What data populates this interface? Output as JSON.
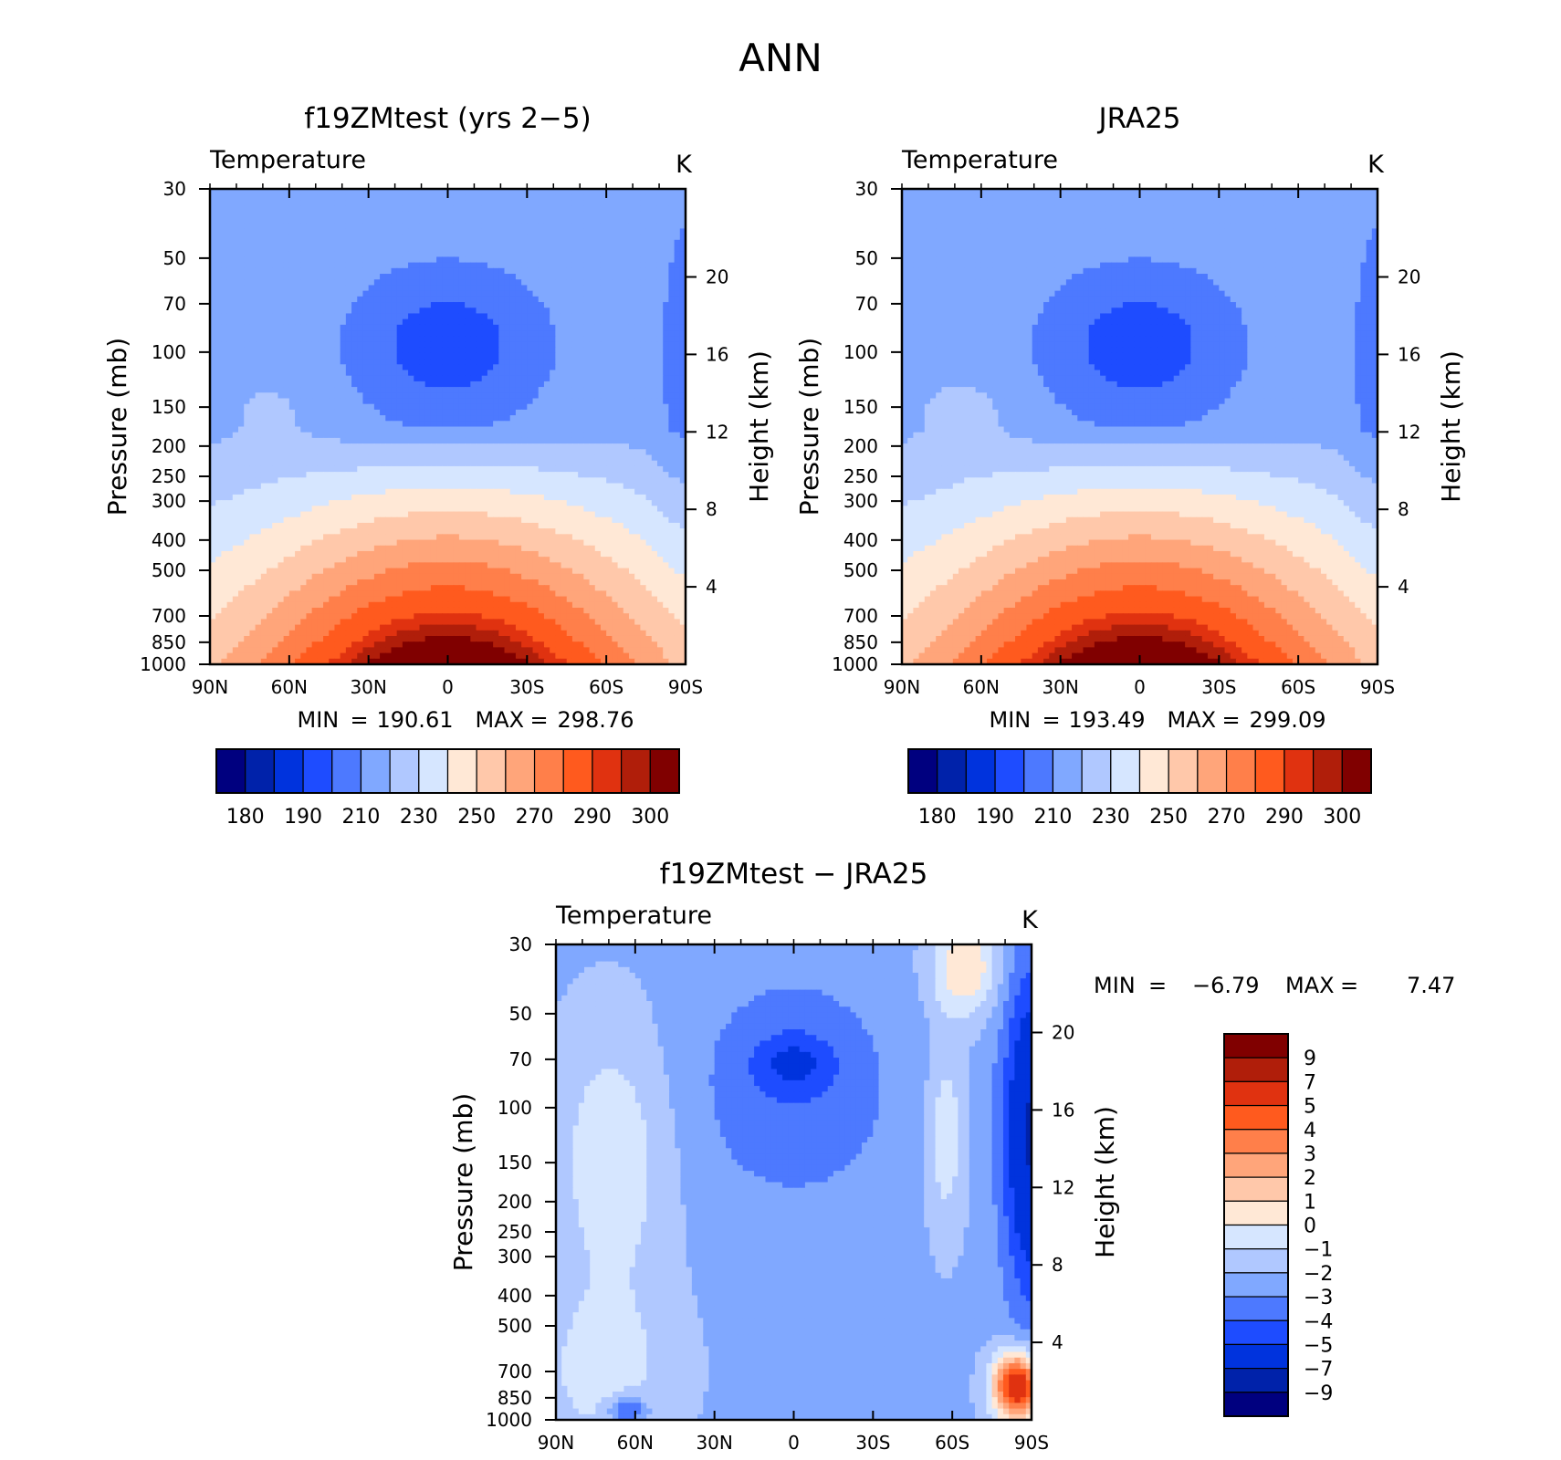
{
  "figure_title": "ANN",
  "colors": {
    "abs_palette": [
      "#00007f",
      "#0022aa",
      "#0033dd",
      "#1e4cff",
      "#4d79ff",
      "#80a8ff",
      "#b0c8ff",
      "#d6e6ff",
      "#ffe8d6",
      "#ffc8aa",
      "#ffa57a",
      "#ff7f4a",
      "#ff5a1e",
      "#e03210",
      "#b01e0a",
      "#800000"
    ],
    "diff_palette": [
      "#00007f",
      "#0022aa",
      "#0033dd",
      "#1e4cff",
      "#4d79ff",
      "#80a8ff",
      "#b0c8ff",
      "#d6e6ff",
      "#ffe8d6",
      "#ffc8aa",
      "#ffa57a",
      "#ff7f4a",
      "#ff5a1e",
      "#e03210",
      "#b01e0a",
      "#800000"
    ]
  },
  "chart_data": [
    {
      "type": "heatmap",
      "title": "f19ZMtest (yrs 2−5)",
      "variable": "Temperature",
      "units": "K",
      "ylabel": "Pressure (mb)",
      "ylabel_right": "Height (km)",
      "x_ticks": [
        "90N",
        "60N",
        "30N",
        "0",
        "30S",
        "60S",
        "90S"
      ],
      "y_ticks": [
        "30",
        "50",
        "70",
        "100",
        "150",
        "200",
        "250",
        "300",
        "400",
        "500",
        "700",
        "850",
        "1000"
      ],
      "y_ticks_right": [
        "20",
        "16",
        "12",
        "8",
        "4"
      ],
      "min_label": "MIN",
      "min_value": "190.61",
      "max_label": "MAX",
      "max_value": "298.76",
      "colorbar_labels": [
        "180",
        "190",
        "210",
        "230",
        "250",
        "270",
        "290",
        "300"
      ]
    },
    {
      "type": "heatmap",
      "title": "JRA25",
      "variable": "Temperature",
      "units": "K",
      "ylabel": "Pressure (mb)",
      "ylabel_right": "Height (km)",
      "x_ticks": [
        "90N",
        "60N",
        "30N",
        "0",
        "30S",
        "60S",
        "90S"
      ],
      "y_ticks": [
        "30",
        "50",
        "70",
        "100",
        "150",
        "200",
        "250",
        "300",
        "400",
        "500",
        "700",
        "850",
        "1000"
      ],
      "y_ticks_right": [
        "20",
        "16",
        "12",
        "8",
        "4"
      ],
      "min_label": "MIN",
      "min_value": "193.49",
      "max_label": "MAX",
      "max_value": "299.09",
      "colorbar_labels": [
        "180",
        "190",
        "210",
        "230",
        "250",
        "270",
        "290",
        "300"
      ]
    },
    {
      "type": "heatmap",
      "title": "f19ZMtest − JRA25",
      "variable": "Temperature",
      "units": "K",
      "ylabel": "Pressure (mb)",
      "ylabel_right": "Height (km)",
      "x_ticks": [
        "90N",
        "60N",
        "30N",
        "0",
        "30S",
        "60S",
        "90S"
      ],
      "y_ticks": [
        "30",
        "50",
        "70",
        "100",
        "150",
        "200",
        "250",
        "300",
        "400",
        "500",
        "700",
        "850",
        "1000"
      ],
      "y_ticks_right": [
        "20",
        "16",
        "12",
        "8",
        "4"
      ],
      "min_label": "MIN",
      "min_value": "−6.79",
      "max_label": "MAX",
      "max_value": "7.47",
      "colorbar_labels": [
        "9",
        "7",
        "5",
        "4",
        "3",
        "2",
        "1",
        "0",
        "−1",
        "−2",
        "−3",
        "−4",
        "−5",
        "−7",
        "−9"
      ]
    }
  ]
}
